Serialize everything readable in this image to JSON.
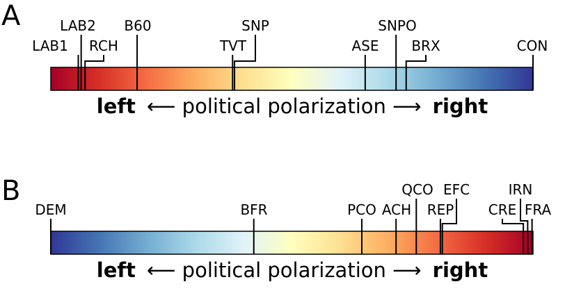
{
  "panels": [
    {
      "letter": "A",
      "gradient": [
        "#a50026",
        "#d73027",
        "#f46d43",
        "#fdae61",
        "#fee090",
        "#ffffbf",
        "#e0f3f8",
        "#abd9e9",
        "#74add1",
        "#4575b4",
        "#313695"
      ],
      "caption": {
        "left": "left",
        "middle": "⟵  political polarization  ⟶",
        "right": "right"
      },
      "markers": [
        {
          "label": "LAB1",
          "position": 0.057
        },
        {
          "label": "LAB2",
          "position": 0.063
        },
        {
          "label": "RCH",
          "position": 0.071
        },
        {
          "label": "B60",
          "position": 0.179
        },
        {
          "label": "TVT",
          "position": 0.377
        },
        {
          "label": "SNP",
          "position": 0.381
        },
        {
          "label": "ASE",
          "position": 0.652
        },
        {
          "label": "SNPO",
          "position": 0.716
        },
        {
          "label": "BRX",
          "position": 0.737
        },
        {
          "label": "CON",
          "position": 1.0
        }
      ]
    },
    {
      "letter": "B",
      "gradient": [
        "#313695",
        "#4575b4",
        "#74add1",
        "#abd9e9",
        "#e0f3f8",
        "#ffffbf",
        "#fee090",
        "#fdae61",
        "#f46d43",
        "#d73027",
        "#a50026"
      ],
      "caption": {
        "left": "left",
        "middle": "⟵  political polarization  ⟶",
        "right": "right"
      },
      "markers": [
        {
          "label": "DEM",
          "position": 0.0
        },
        {
          "label": "BFR",
          "position": 0.421
        },
        {
          "label": "PCO",
          "position": 0.645
        },
        {
          "label": "ACH",
          "position": 0.716
        },
        {
          "label": "QCO",
          "position": 0.758
        },
        {
          "label": "REP",
          "position": 0.808
        },
        {
          "label": "EFC",
          "position": 0.812
        },
        {
          "label": "CRE",
          "position": 0.98
        },
        {
          "label": "IRN",
          "position": 0.989
        },
        {
          "label": "FRA",
          "position": 0.998
        }
      ]
    }
  ]
}
